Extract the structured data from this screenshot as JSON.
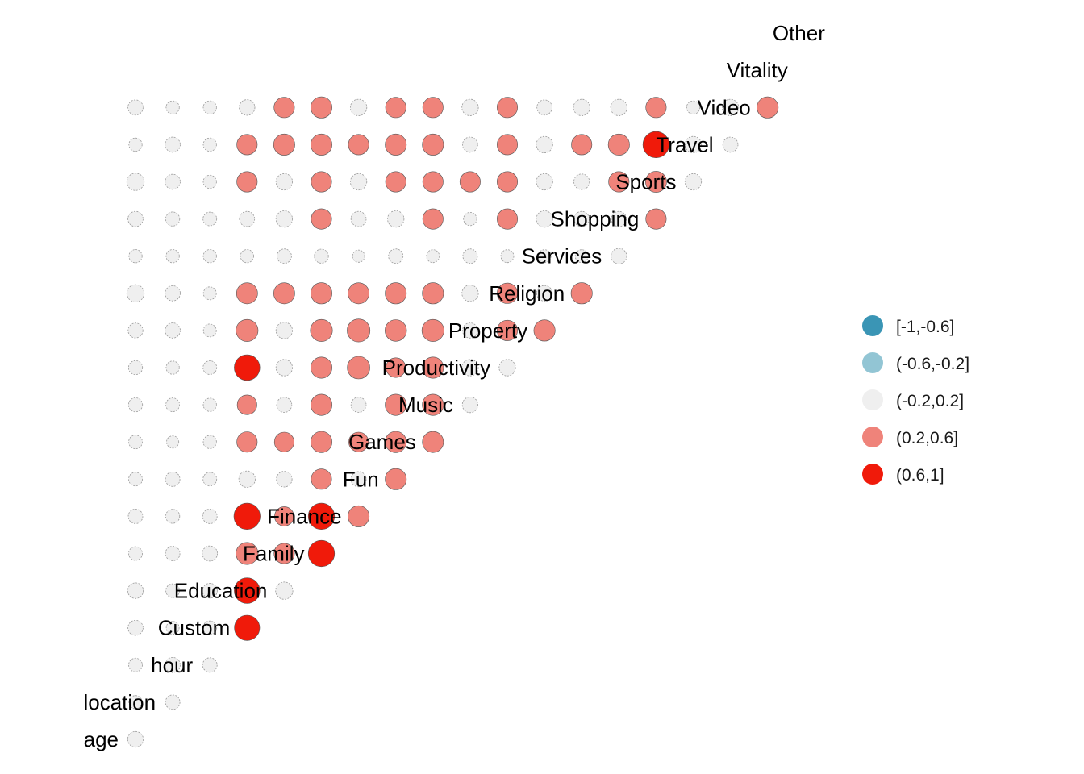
{
  "chart_data": {
    "type": "correlation-matrix",
    "variables": [
      "age",
      "location",
      "hour",
      "Custom",
      "Education",
      "Family",
      "Finance",
      "Fun",
      "Games",
      "Music",
      "Productivity",
      "Property",
      "Religion",
      "Services",
      "Shopping",
      "Sports",
      "Travel",
      "Video",
      "Vitality",
      "Other"
    ],
    "bins": [
      {
        "label": "[-1,-0.6]",
        "color": "#3a95b5"
      },
      {
        "label": "(-0.6,-0.2]",
        "color": "#92c5d4"
      },
      {
        "label": "(-0.2,0.2]",
        "color": "#efefef"
      },
      {
        "label": "(0.2,0.6]",
        "color": "#ef837a"
      },
      {
        "label": "(0.6,1]",
        "color": "#f01a0a"
      }
    ],
    "legend_position": "right",
    "matrix": [
      [
        0.12
      ],
      [
        0.05,
        0.08
      ],
      [
        0.06,
        0.1,
        0.08
      ],
      [
        0.1,
        0.04,
        0.06,
        0.7
      ],
      [
        0.12,
        0.06,
        0.09,
        0.72,
        0.18
      ],
      [
        0.06,
        0.08,
        0.1,
        0.45,
        0.35,
        0.78
      ],
      [
        0.08,
        0.07,
        0.08,
        0.78,
        0.28,
        0.78,
        0.4
      ],
      [
        0.06,
        0.08,
        0.06,
        0.15,
        0.12,
        0.35,
        0.1,
        0.4
      ],
      [
        0.06,
        0.03,
        0.05,
        0.35,
        0.3,
        0.4,
        0.3,
        0.4,
        0.38
      ],
      [
        0.07,
        0.06,
        0.05,
        0.3,
        0.1,
        0.4,
        0.1,
        0.4,
        0.4,
        0.12
      ],
      [
        0.07,
        0.05,
        0.06,
        0.72,
        0.15,
        0.4,
        0.48,
        0.3,
        0.4,
        0.15,
        0.15
      ],
      [
        0.09,
        0.1,
        0.04,
        0.45,
        0.15,
        0.45,
        0.5,
        0.42,
        0.45,
        0.1,
        0.35,
        0.4
      ],
      [
        0.18,
        0.1,
        0.04,
        0.38,
        0.38,
        0.4,
        0.38,
        0.4,
        0.4,
        0.15,
        0.35,
        0.12,
        0.4
      ],
      [
        0.05,
        0.05,
        0.05,
        0.05,
        0.08,
        0.07,
        0.03,
        0.08,
        0.04,
        0.08,
        0.04,
        0.04,
        0.04,
        0.12
      ],
      [
        0.1,
        0.07,
        0.06,
        0.1,
        0.15,
        0.35,
        0.1,
        0.15,
        0.35,
        0.05,
        0.35,
        0.15,
        0.1,
        0.1,
        0.35
      ],
      [
        0.18,
        0.1,
        0.05,
        0.35,
        0.15,
        0.35,
        0.15,
        0.35,
        0.35,
        0.35,
        0.35,
        0.15,
        0.12,
        0.35,
        0.38,
        0.15
      ],
      [
        0.05,
        0.1,
        0.05,
        0.35,
        0.4,
        0.4,
        0.35,
        0.4,
        0.4,
        0.1,
        0.35,
        0.15,
        0.35,
        0.4,
        0.78,
        0.15,
        0.1
      ],
      [
        0.1,
        0.05,
        0.05,
        0.12,
        0.35,
        0.4,
        0.15,
        0.35,
        0.35,
        0.15,
        0.35,
        0.1,
        0.15,
        0.15,
        0.35,
        0.05,
        0.15,
        0.4
      ],
      null
    ]
  }
}
